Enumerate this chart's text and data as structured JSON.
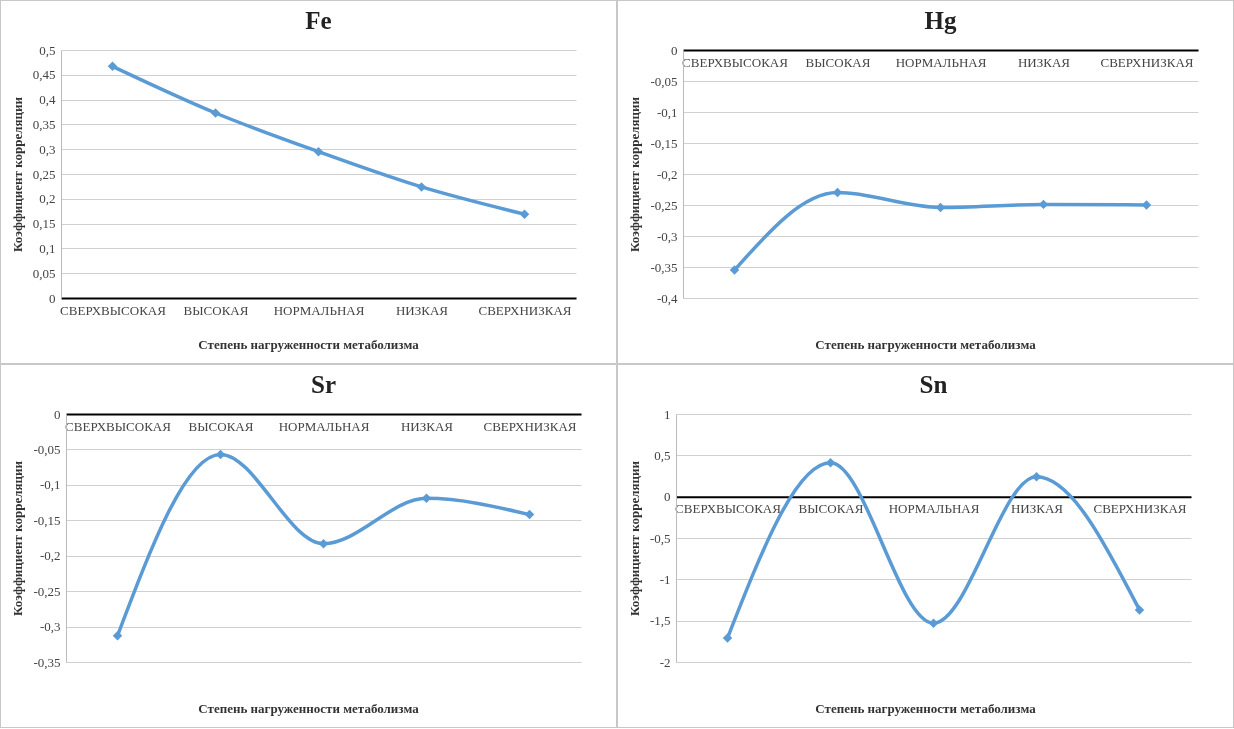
{
  "chart_data": [
    {
      "type": "line",
      "title": "Fe",
      "xlabel": "Степень нагруженности метаболизма",
      "ylabel": "Коэффициент корреляции",
      "categories": [
        "СВЕРХВЫСОКАЯ",
        "ВЫСОКАЯ",
        "НОРМАЛЬНАЯ",
        "НИЗКАЯ",
        "СВЕРХНИЗКАЯ"
      ],
      "series": [
        {
          "color": "#5b9bd5",
          "values": [
            0.467,
            0.373,
            0.295,
            0.224,
            0.169
          ]
        }
      ],
      "ylim": [
        0,
        0.5
      ],
      "yticks": [
        0,
        {
          "value": 0.05,
          "label": "0,05"
        },
        {
          "value": 0.1,
          "label": "0,1"
        },
        {
          "value": 0.15,
          "label": "0,15"
        },
        {
          "value": 0.2,
          "label": "0,2"
        },
        {
          "value": 0.25,
          "label": "0,25"
        },
        {
          "value": 0.3,
          "label": "0,3"
        },
        {
          "value": 0.35,
          "label": "0,35"
        },
        {
          "value": 0.4,
          "label": "0,4"
        },
        {
          "value": 0.45,
          "label": "0,45"
        },
        {
          "value": 0.5,
          "label": "0,5"
        }
      ],
      "grid": "y",
      "marker": "diamond",
      "legend": false
    },
    {
      "type": "line",
      "title": "Hg",
      "xlabel": "Степень нагруженности метаболизма",
      "ylabel": "Коэффициент корреляции",
      "categories": [
        "СВЕРХВЫСОКАЯ",
        "ВЫСОКАЯ",
        "НОРМАЛЬНАЯ",
        "НИЗКАЯ",
        "СВЕРХНИЗКАЯ"
      ],
      "series": [
        {
          "color": "#5b9bd5",
          "values": [
            -0.355,
            -0.23,
            -0.254,
            -0.249,
            -0.25
          ]
        }
      ],
      "ylim": [
        -0.4,
        0
      ],
      "yticks": [
        0,
        {
          "value": -0.05,
          "label": "-0,05"
        },
        {
          "value": -0.1,
          "label": "-0,1"
        },
        {
          "value": -0.15,
          "label": "-0,15"
        },
        {
          "value": -0.2,
          "label": "-0,2"
        },
        {
          "value": -0.25,
          "label": "-0,25"
        },
        {
          "value": -0.3,
          "label": "-0,3"
        },
        {
          "value": -0.35,
          "label": "-0,35"
        },
        {
          "value": -0.4,
          "label": "-0,4"
        }
      ],
      "grid": "y",
      "marker": "diamond",
      "legend": false
    },
    {
      "type": "line",
      "title": "Sr",
      "xlabel": "Степень нагруженности метаболизма",
      "ylabel": "Коэффициент корреляции",
      "categories": [
        "СВЕРХВЫСОКАЯ",
        "ВЫСОКАЯ",
        "НОРМАЛЬНАЯ",
        "НИЗКАЯ",
        "СВЕРХНИЗКАЯ"
      ],
      "series": [
        {
          "color": "#5b9bd5",
          "values": [
            -0.313,
            -0.057,
            -0.183,
            -0.119,
            -0.142
          ]
        }
      ],
      "ylim": [
        -0.35,
        0
      ],
      "yticks": [
        0,
        {
          "value": -0.05,
          "label": "-0,05"
        },
        {
          "value": -0.1,
          "label": "-0,1"
        },
        {
          "value": -0.15,
          "label": "-0,15"
        },
        {
          "value": -0.2,
          "label": "-0,2"
        },
        {
          "value": -0.25,
          "label": "-0,25"
        },
        {
          "value": -0.3,
          "label": "-0,3"
        },
        {
          "value": -0.35,
          "label": "-0,35"
        }
      ],
      "grid": "y",
      "marker": "diamond",
      "legend": false
    },
    {
      "type": "line",
      "title": "Sn",
      "xlabel": "Степень нагруженности метаболизма",
      "ylabel": "Коэффициент корреляции",
      "categories": [
        "СВЕРХВЫСОКАЯ",
        "ВЫСОКАЯ",
        "НОРМАЛЬНАЯ",
        "НИЗКАЯ",
        "СВЕРХНИЗКАЯ"
      ],
      "series": [
        {
          "color": "#5b9bd5",
          "values": [
            -1.71,
            0.41,
            -1.53,
            0.24,
            -1.37
          ]
        }
      ],
      "ylim": [
        -2,
        1
      ],
      "yticks": [
        1,
        {
          "value": 0.5,
          "label": "0,5"
        },
        0,
        {
          "value": -0.5,
          "label": "-0,5"
        },
        -1,
        {
          "value": -1.5,
          "label": "-1,5"
        },
        -2
      ],
      "grid": "y",
      "marker": "diamond",
      "legend": false
    }
  ]
}
